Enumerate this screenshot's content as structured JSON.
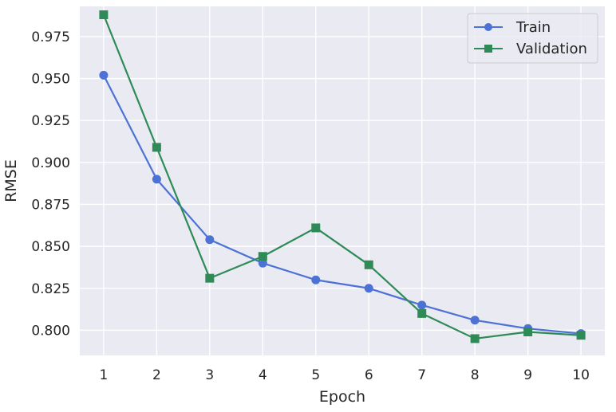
{
  "chart_data": {
    "type": "line",
    "title": "",
    "xlabel": "Epoch",
    "ylabel": "RMSE",
    "x": [
      1,
      2,
      3,
      4,
      5,
      6,
      7,
      8,
      9,
      10
    ],
    "xticks": [
      "1",
      "2",
      "3",
      "4",
      "5",
      "6",
      "7",
      "8",
      "9",
      "10"
    ],
    "yticks": [
      "0.800",
      "0.825",
      "0.850",
      "0.875",
      "0.900",
      "0.925",
      "0.950",
      "0.975"
    ],
    "xlim": [
      0.55,
      10.45
    ],
    "ylim": [
      0.785,
      0.993
    ],
    "grid": true,
    "legend_position": "top-right",
    "series": [
      {
        "name": "Train",
        "values": [
          0.952,
          0.89,
          0.854,
          0.84,
          0.83,
          0.825,
          0.815,
          0.806,
          0.801,
          0.798
        ],
        "color": "#4c72d6",
        "marker": "circle"
      },
      {
        "name": "Validation",
        "values": [
          0.988,
          0.909,
          0.831,
          0.844,
          0.861,
          0.839,
          0.81,
          0.795,
          0.799,
          0.797
        ],
        "color": "#2e8b57",
        "marker": "square"
      }
    ]
  }
}
